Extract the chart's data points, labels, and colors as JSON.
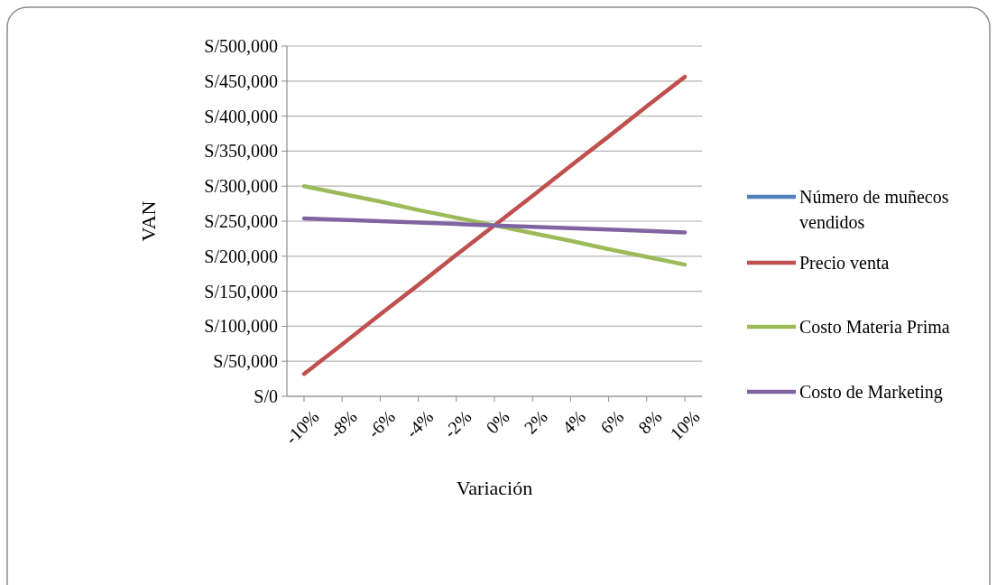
{
  "chart_data": {
    "type": "line",
    "xlabel": "Variación",
    "ylabel": "VAN",
    "categories": [
      "-10%",
      "-8%",
      "-6%",
      "-4%",
      "-2%",
      "0%",
      "2%",
      "4%",
      "6%",
      "8%",
      "10%"
    ],
    "series": [
      {
        "name": "Número de muñecos vendidos",
        "color": "#4f81bd",
        "values": [
          null,
          null,
          null,
          null,
          null,
          null,
          null,
          null,
          null,
          null,
          null
        ]
      },
      {
        "name": "Precio venta",
        "color": "#c0504d",
        "values": [
          32000,
          74000,
          117000,
          159000,
          202000,
          244000,
          286000,
          329000,
          371000,
          414000,
          456000
        ]
      },
      {
        "name": "Costo Materia Prima",
        "color": "#9bbb59",
        "values": [
          300000,
          289000,
          278000,
          266000,
          255000,
          244000,
          233000,
          222000,
          210000,
          199000,
          188000
        ]
      },
      {
        "name": "Costo de Marketing",
        "color": "#8064a2",
        "values": [
          254000,
          252000,
          250000,
          248000,
          246000,
          244000,
          242000,
          240000,
          238000,
          236000,
          234000
        ]
      }
    ],
    "ylim": [
      0,
      500000
    ],
    "yticks": [
      {
        "value": 0,
        "label": "S/0"
      },
      {
        "value": 50000,
        "label": "S/50,000"
      },
      {
        "value": 100000,
        "label": "S/100,000"
      },
      {
        "value": 150000,
        "label": "S/150,000"
      },
      {
        "value": 200000,
        "label": "S/200,000"
      },
      {
        "value": 250000,
        "label": "S/250,000"
      },
      {
        "value": 300000,
        "label": "S/300,000"
      },
      {
        "value": 350000,
        "label": "S/350,000"
      },
      {
        "value": 400000,
        "label": "S/400,000"
      },
      {
        "value": 450000,
        "label": "S/450,000"
      },
      {
        "value": 500000,
        "label": "S/500,000"
      }
    ],
    "grid": "y",
    "legend": "right",
    "marker": "none",
    "line_style": "solid"
  }
}
